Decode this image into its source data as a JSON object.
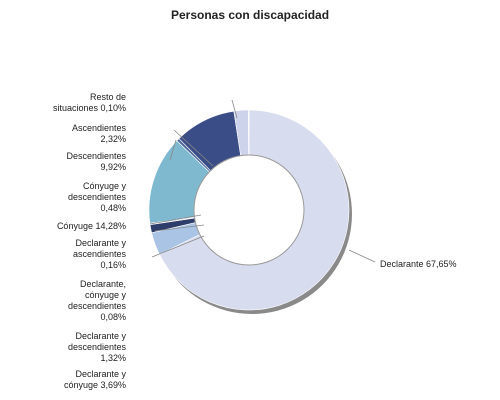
{
  "chart_data": {
    "type": "pie",
    "title": "Personas con discapacidad",
    "slices": [
      {
        "label": "Declarante",
        "value": 67.65,
        "value_text": "67,65%",
        "color": "#d8dcef"
      },
      {
        "label": "Declarante y cónyuge",
        "value": 3.69,
        "value_text": "3,69%",
        "color": "#aac4e6"
      },
      {
        "label": "Declarante y descendientes",
        "value": 1.32,
        "value_text": "1,32%",
        "color": "#2f3d6b"
      },
      {
        "label": "Declarante, cónyuge y descendientes",
        "value": 0.08,
        "value_text": "0,08%",
        "color": "#6b7cb0"
      },
      {
        "label": "Declarante y ascendientes",
        "value": 0.16,
        "value_text": "0,16%",
        "color": "#3b4a7d"
      },
      {
        "label": "Cónyuge",
        "value": 14.28,
        "value_text": "14,28%",
        "color": "#7fb9cf"
      },
      {
        "label": "Cónyuge y descendientes",
        "value": 0.48,
        "value_text": "0,48%",
        "color": "#4f6a9a"
      },
      {
        "label": "Descendientes",
        "value": 9.92,
        "value_text": "9,92%",
        "color": "#3b4d86"
      },
      {
        "label": "Ascendientes",
        "value": 2.32,
        "value_text": "2,32%",
        "color": "#ccd3ea"
      },
      {
        "label": "Resto de situaciones",
        "value": 0.1,
        "value_text": "0,10%",
        "color": "#9aa7cf"
      }
    ],
    "legend": "none"
  },
  "labels": {
    "declarante": "Declarante 67,65%",
    "resto": "Resto de\nsituaciones 0,10%",
    "ascendientes": "Ascendientes\n2,32%",
    "descendientes": "Descendientes\n9,92%",
    "conyuge_desc": "Cónyuge y\ndescendientes\n0,48%",
    "conyuge": "Cónyuge 14,28%",
    "decl_asc": "Declarante y\nascendientes\n0,16%",
    "decl_cony_desc": "Declarante,\ncónyuge y\ndescendientes\n0,08%",
    "decl_desc": "Declarante y\ndescendientes\n1,32%",
    "decl_cony": "Declarante y\ncónyuge 3,69%"
  }
}
